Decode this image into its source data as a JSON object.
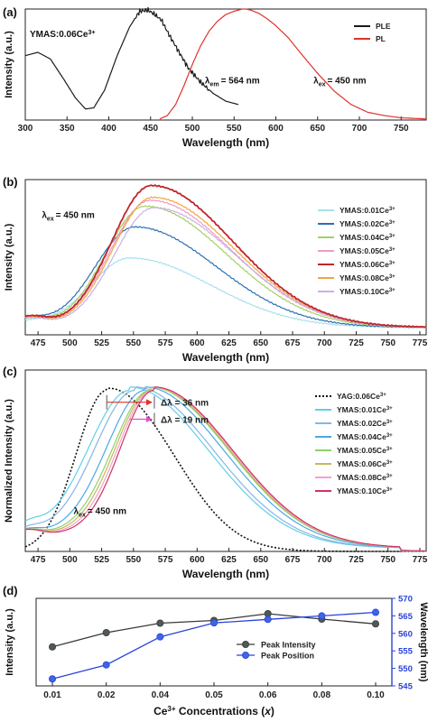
{
  "chart_data": [
    {
      "id": "a",
      "type": "line",
      "panel_label": "(a)",
      "annotation": "YMAS:0.06Ce",
      "annotation_sup": "3+",
      "xlabel": "Wavelength (nm)",
      "ylabel": "Intensity (a.u.)",
      "xlim": [
        300,
        780
      ],
      "xticks": [
        300,
        350,
        400,
        450,
        500,
        550,
        600,
        650,
        700,
        750
      ],
      "y_ticks_shown": false,
      "grid": false,
      "legend_position": "top-right",
      "labels": [
        {
          "main": "λ",
          "sub": "em",
          "rest": "= 564 nm",
          "x": 515,
          "y": 0.33
        },
        {
          "main": "λ",
          "sub": "ex",
          "rest": "= 450 nm",
          "x": 645,
          "y": 0.33
        }
      ],
      "series": [
        {
          "name": "PLE",
          "color": "#1a1a1a",
          "x": [
            300,
            315,
            330,
            345,
            360,
            372,
            382,
            395,
            410,
            425,
            437,
            447,
            455,
            463,
            472,
            482,
            495,
            510,
            525,
            540,
            555
          ],
          "values": [
            0.58,
            0.61,
            0.55,
            0.38,
            0.2,
            0.1,
            0.11,
            0.27,
            0.58,
            0.84,
            0.98,
            0.99,
            0.95,
            0.9,
            0.77,
            0.64,
            0.47,
            0.34,
            0.24,
            0.17,
            0.14
          ]
        },
        {
          "name": "PL",
          "color": "#e0322b",
          "x": [
            461,
            470,
            480,
            490,
            500,
            510,
            520,
            530,
            540,
            550,
            560,
            564,
            570,
            580,
            590,
            600,
            615,
            630,
            650,
            670,
            690,
            710,
            730,
            750,
            780
          ],
          "values": [
            0.01,
            0.04,
            0.14,
            0.31,
            0.5,
            0.67,
            0.8,
            0.89,
            0.95,
            0.98,
            1.0,
            1.0,
            0.99,
            0.96,
            0.91,
            0.85,
            0.74,
            0.6,
            0.42,
            0.26,
            0.14,
            0.07,
            0.04,
            0.02,
            0.01
          ]
        }
      ]
    },
    {
      "id": "b",
      "type": "line",
      "panel_label": "(b)",
      "xlabel": "Wavelength (nm)",
      "ylabel": "Intensity (a.u.)",
      "xlim": [
        465,
        780
      ],
      "xticks": [
        475,
        500,
        525,
        550,
        575,
        600,
        625,
        650,
        675,
        700,
        725,
        750,
        775
      ],
      "y_ticks_shown": false,
      "grid": false,
      "legend_position": "right",
      "labels": [
        {
          "main": "λ",
          "sub": "ex",
          "rest": "= 450 nm",
          "x": 478,
          "y": 0.79
        }
      ],
      "peak_wavelengths": [
        547,
        551,
        559,
        563,
        564,
        565,
        566
      ],
      "peak_heights": [
        0.47,
        0.68,
        0.82,
        0.86,
        0.96,
        0.88,
        0.81
      ],
      "series": [
        {
          "name": "YMAS:0.01Ce",
          "sup": "3+",
          "color": "#a8e0ee"
        },
        {
          "name": "YMAS:0.02Ce",
          "sup": "3+",
          "color": "#2a6fb6"
        },
        {
          "name": "YMAS:0.04Ce",
          "sup": "3+",
          "color": "#a6cf63"
        },
        {
          "name": "YMAS:0.05Ce",
          "sup": "3+",
          "color": "#f09ac6"
        },
        {
          "name": "YMAS:0.06Ce",
          "sup": "3+",
          "color": "#c0262b"
        },
        {
          "name": "YMAS:0.08Ce",
          "sup": "3+",
          "color": "#f3a53f"
        },
        {
          "name": "YMAS:0.10Ce",
          "sup": "3+",
          "color": "#c6b3e3"
        }
      ]
    },
    {
      "id": "c",
      "type": "line",
      "panel_label": "(c)",
      "xlabel": "Wavelength (nm)",
      "ylabel": "Normalized Intensity (a.u.)",
      "xlim": [
        465,
        780
      ],
      "xticks": [
        475,
        500,
        525,
        550,
        575,
        600,
        625,
        650,
        675,
        700,
        725,
        750,
        775
      ],
      "y_ticks_shown": false,
      "grid": false,
      "legend_position": "right",
      "labels": [
        {
          "main": "λ",
          "sub": "ex",
          "rest": "= 450 nm",
          "x": 503,
          "y": 0.22
        }
      ],
      "arrows": [
        {
          "text": "Δλ = 36 nm",
          "x_from": 529,
          "x_to": 565,
          "y": 0.88,
          "color": "#e0322b"
        },
        {
          "text": "Δλ = 19 nm",
          "x_from": 547,
          "x_to": 565,
          "y": 0.78,
          "color": "#e24bd0"
        }
      ],
      "peak_wavelengths": [
        529,
        547,
        551,
        559,
        563,
        564,
        565,
        566
      ],
      "series": [
        {
          "name": "YAG:0.06Ce",
          "sup": "3+",
          "color": "#111111",
          "dashed": true
        },
        {
          "name": "YMAS:0.01Ce",
          "sup": "3+",
          "color": "#5fd0e8"
        },
        {
          "name": "YMAS:0.02Ce",
          "sup": "3+",
          "color": "#88b4e6"
        },
        {
          "name": "YMAS:0.04Ce",
          "sup": "3+",
          "color": "#49a9e3"
        },
        {
          "name": "YMAS:0.05Ce",
          "sup": "3+",
          "color": "#8fd16a"
        },
        {
          "name": "YMAS:0.06Ce",
          "sup": "3+",
          "color": "#c6b85a"
        },
        {
          "name": "YMAS:0.08Ce",
          "sup": "3+",
          "color": "#f0a2cd"
        },
        {
          "name": "YMAS:0.10Ce",
          "sup": "3+",
          "color": "#cf3360"
        }
      ]
    },
    {
      "id": "d",
      "type": "line",
      "panel_label": "(d)",
      "categories": [
        "0.01",
        "0.02",
        "0.04",
        "0.05",
        "0.06",
        "0.08",
        "0.10"
      ],
      "xlabel_pre": "Ce",
      "xlabel_sup": "3+",
      "xlabel_post": " Concentrations (",
      "xlabel_var": "x",
      "xlabel_end": ")",
      "ylabel": "Intensity (a.u.)",
      "ylabel_right": "Wavelength (nm)",
      "ylim_right": [
        545,
        570
      ],
      "yticks_right": [
        545,
        550,
        555,
        560,
        565,
        570
      ],
      "legend_position": "center-right",
      "series": [
        {
          "name": "Peak Intensity",
          "color": "#3a3a3a",
          "marker_fill": "#4f5a55",
          "axis": "left",
          "values": [
            0.47,
            0.68,
            0.82,
            0.86,
            0.96,
            0.88,
            0.81
          ]
        },
        {
          "name": "Peak Position",
          "color": "#2943d8",
          "marker_fill": "#3f64e6",
          "axis": "right",
          "values": [
            547,
            551,
            559,
            563,
            564,
            565,
            566
          ]
        }
      ]
    }
  ]
}
